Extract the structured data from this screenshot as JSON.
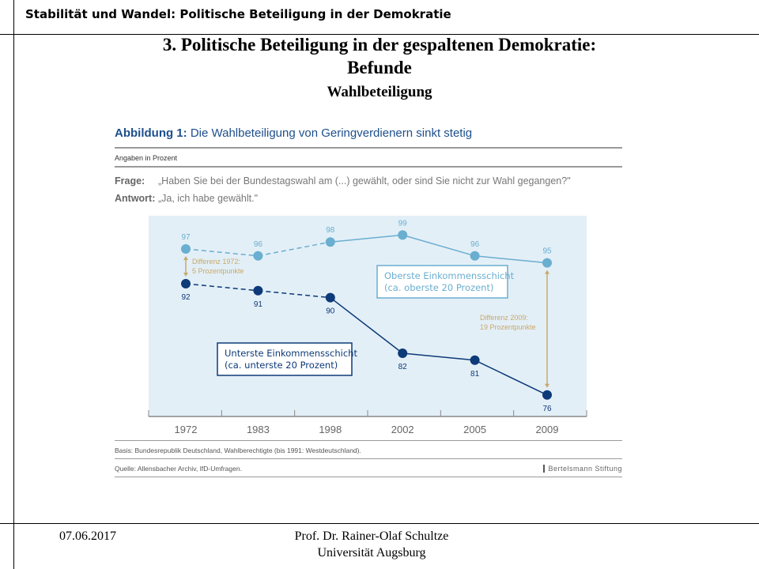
{
  "slide": {
    "header": "Stabilität und Wandel: Politische Beteiligung in der Demokratie",
    "title_line1": "3. Politische Beteiligung in der gespaltenen Demokratie:",
    "title_line2": "Befunde",
    "subtitle": "Wahlbeteiligung",
    "footer_date": "07.06.2017",
    "footer_author": "Prof. Dr. Rainer-Olaf Schultze",
    "footer_institution": "Universität  Augsburg"
  },
  "figure": {
    "label": "Abbildung 1:",
    "title": "Die Wahlbeteiligung von Geringverdienern sinkt stetig",
    "unit": "Angaben in Prozent",
    "question_label": "Frage:",
    "question": "„Haben Sie bei der Bundestagswahl am (...) gewählt, oder sind Sie nicht zur Wahl gegangen?\"",
    "answer_label": "Antwort:",
    "answer": "„Ja, ich habe gewählt.\"",
    "basis": "Basis: Bundesrepublik Deutschland, Wahlberechtigte (bis 1991:  Westdeutschland).",
    "source": "Quelle: Allensbacher Archiv, IfD-Umfragen.",
    "logo": "Bertelsmann Stiftung"
  },
  "chart_data": {
    "type": "line",
    "categories": [
      "1972",
      "1983",
      "1998",
      "2002",
      "2005",
      "2009"
    ],
    "series": [
      {
        "name": "Oberste Einkommensschicht (ca. oberste 20 Prozent)",
        "label_line1": "Oberste Einkommensschicht",
        "label_line2": "(ca. oberste 20 Prozent)",
        "values": [
          97,
          96,
          98,
          99,
          96,
          95
        ],
        "color": "#6aaed0",
        "dashed_until": "1998"
      },
      {
        "name": "Unterste Einkommensschicht (ca. unterste 20 Prozent)",
        "label_line1": "Unterste Einkommensschicht",
        "label_line2": "(ca. unterste 20 Prozent)",
        "values": [
          92,
          91,
          90,
          82,
          81,
          76
        ],
        "color": "#0d3a78",
        "dashed_until": "1998"
      }
    ],
    "annotations": [
      {
        "year": "1972",
        "line1": "Differenz 1972:",
        "line2": "5 Prozentpunkte"
      },
      {
        "year": "2009",
        "line1": "Differenz 2009:",
        "line2": "19 Prozentpunkte"
      }
    ],
    "annotation_color": "#c8a96a",
    "background": "#e3eff7",
    "ylim": [
      74,
      100
    ],
    "grid": false,
    "y_axis_shown": false
  }
}
